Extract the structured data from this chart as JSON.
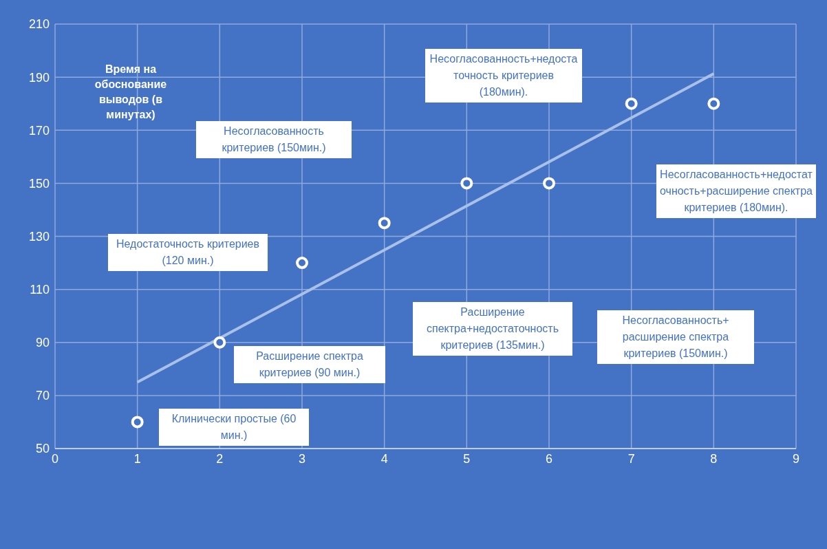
{
  "chart_data": {
    "type": "scatter",
    "ylabel": "Время на обоснование выводов (в минутах)",
    "xlim": [
      0,
      9
    ],
    "xticks": [
      0,
      1,
      2,
      3,
      4,
      5,
      6,
      7,
      8,
      9
    ],
    "ylim": [
      50,
      210
    ],
    "yticks": [
      50,
      70,
      90,
      110,
      130,
      150,
      170,
      190,
      210
    ],
    "grid": true,
    "series": [
      {
        "marker": "circle",
        "color": "#ffffff",
        "x": [
          1,
          2,
          3,
          4,
          5,
          6,
          7,
          8
        ],
        "values": [
          60,
          90,
          120,
          135,
          150,
          150,
          180,
          180
        ]
      },
      {
        "type": "line",
        "marker": "none",
        "color": "#a9c1e8",
        "x": [
          1,
          8
        ],
        "values": [
          75,
          191.3
        ]
      }
    ],
    "annotations": [
      "Клинически простые (60 мин.)",
      "Расширение спектра критериев (90 мин.)",
      "Недостаточность критериев (120 мин.)",
      "Расширение спектра+недостаточность критериев (135мин.)",
      "Несогласованность критериев (150мин.)",
      "Несогласованность+ расширение спектра критериев (150мин.)",
      "Несогласованность+недостаточность критериев (180мин).",
      "Несогласованность+недостаточность+расширение спектра критериев (180мин)."
    ]
  }
}
